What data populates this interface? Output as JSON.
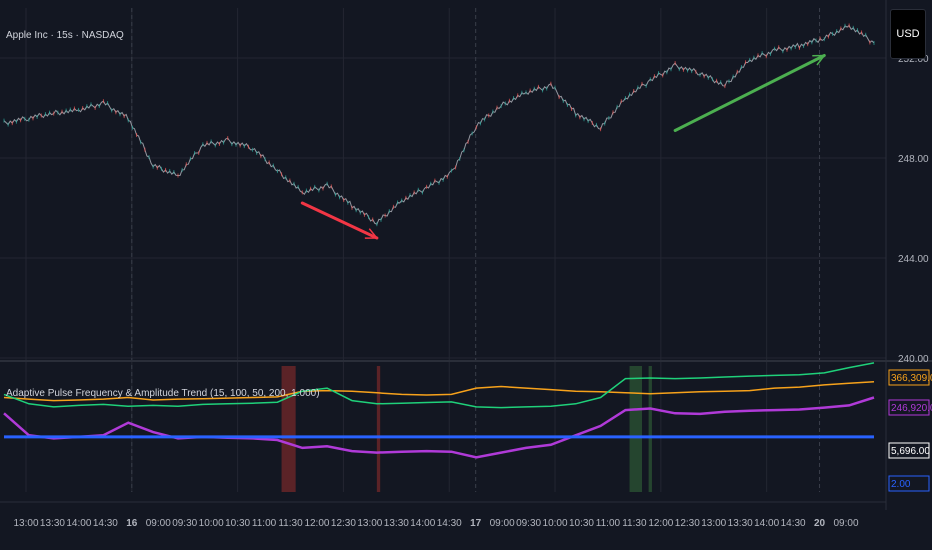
{
  "header": {
    "symbol_title": "Apple Inc · 15s · NASDAQ",
    "currency": "USD"
  },
  "indicator": {
    "title": "Adaptive Pulse Frequency & Amplitude Trend (15, 100, 50, 200, 1.000)"
  },
  "colors": {
    "background": "#131722",
    "grid": "#232632",
    "price_line": "#9598a1",
    "up_candle": "#26a69a",
    "down_candle": "#ef5350",
    "bear_arrow": "#f23645",
    "bull_arrow": "#4caf50",
    "green_line": "#1fd17a",
    "orange_line": "#f7a21b",
    "purple_line": "#b03ad8",
    "blue_line": "#2962ff",
    "red_zone": "#7a2a2a",
    "green_zone": "#2e5a34"
  },
  "price_axis": {
    "ticks": [
      "252.00",
      "248.00",
      "244.00",
      "240.00"
    ]
  },
  "indicator_axis": {
    "tags": [
      {
        "text": "366,309.00",
        "color": "#f7a21b"
      },
      {
        "text": "246,920.00",
        "color": "#b03ad8"
      },
      {
        "text": "5,696.00",
        "color": "#ffffff"
      },
      {
        "text": "2.00",
        "color": "#2962ff"
      }
    ]
  },
  "time_axis": {
    "labels": [
      "13:00",
      "13:30",
      "14:00",
      "14:30",
      "16",
      "09:00",
      "09:30",
      "10:00",
      "10:30",
      "11:00",
      "11:30",
      "12:00",
      "12:30",
      "13:00",
      "13:30",
      "14:00",
      "14:30",
      "17",
      "09:00",
      "09:30",
      "10:00",
      "10:30",
      "11:00",
      "11:30",
      "12:00",
      "12:30",
      "13:00",
      "13:30",
      "14:00",
      "14:30",
      "20",
      "09:00"
    ],
    "bold_labels": [
      "16",
      "17",
      "20"
    ]
  },
  "chart_data": [
    {
      "type": "line",
      "title": "Apple Inc · 15s · NASDAQ",
      "ylim": [
        240,
        254
      ],
      "x": [
        0,
        3,
        6,
        9,
        12,
        15,
        18,
        21,
        24,
        27,
        30,
        33,
        36,
        39,
        42,
        45,
        48,
        51,
        54,
        57,
        60,
        63,
        66,
        69,
        72,
        75,
        78,
        81,
        84,
        87,
        90,
        93,
        96,
        99,
        102,
        105
      ],
      "values": [
        249.4,
        249.6,
        249.8,
        249.9,
        250.2,
        249.6,
        247.7,
        247.3,
        248.5,
        248.7,
        248.4,
        247.5,
        246.6,
        246.9,
        246.1,
        245.4,
        246.3,
        246.8,
        247.4,
        249.3,
        250.1,
        250.6,
        250.9,
        249.8,
        249.2,
        250.4,
        251.1,
        251.7,
        251.4,
        250.9,
        251.9,
        252.3,
        252.5,
        252.8,
        253.3,
        252.6
      ],
      "annotations": [
        {
          "type": "arrow",
          "direction": "down",
          "from": [
            36,
            246.2
          ],
          "to": [
            45,
            244.8
          ]
        },
        {
          "type": "arrow",
          "direction": "up",
          "from": [
            81,
            249.1
          ],
          "to": [
            99,
            252.1
          ]
        }
      ]
    },
    {
      "type": "line",
      "title": "Adaptive Pulse Frequency & Amplitude Trend (15, 100, 50, 200, 1.000)",
      "ylim": [
        0,
        400000
      ],
      "x": [
        0,
        3,
        6,
        9,
        12,
        15,
        18,
        21,
        24,
        27,
        30,
        33,
        36,
        39,
        42,
        45,
        48,
        51,
        54,
        57,
        60,
        63,
        66,
        69,
        72,
        75,
        78,
        81,
        84,
        87,
        90,
        93,
        96,
        99,
        102,
        105
      ],
      "series": [
        {
          "values": [
            300000,
            295000,
            290000,
            292000,
            295000,
            300000,
            292000,
            295000,
            296000,
            298000,
            300000,
            302000,
            320000,
            322000,
            320000,
            315000,
            310000,
            308000,
            310000,
            330000,
            335000,
            330000,
            325000,
            320000,
            318000,
            315000,
            312000,
            315000,
            318000,
            320000,
            322000,
            330000,
            333000,
            340000,
            345000,
            350000
          ]
        },
        {
          "values": [
            310000,
            280000,
            270000,
            275000,
            278000,
            272000,
            275000,
            272000,
            278000,
            280000,
            282000,
            285000,
            320000,
            330000,
            290000,
            280000,
            282000,
            284000,
            286000,
            270000,
            268000,
            270000,
            272000,
            280000,
            300000,
            360000,
            362000,
            360000,
            362000,
            365000,
            368000,
            370000,
            372000,
            378000,
            395000,
            410000
          ]
        },
        {
          "values": [
            250000,
            180000,
            170000,
            175000,
            180000,
            220000,
            190000,
            170000,
            175000,
            172000,
            170000,
            165000,
            140000,
            145000,
            130000,
            125000,
            128000,
            130000,
            128000,
            110000,
            125000,
            140000,
            150000,
            180000,
            210000,
            260000,
            265000,
            250000,
            248000,
            255000,
            258000,
            260000,
            262000,
            268000,
            275000,
            300000
          ]
        },
        {
          "values": [
            175000,
            175000,
            175000,
            175000,
            175000,
            175000,
            175000,
            175000,
            175000,
            175000,
            175000,
            175000,
            175000,
            175000,
            175000,
            175000,
            175000,
            175000,
            175000,
            175000,
            175000,
            175000,
            175000,
            175000,
            175000,
            175000,
            175000,
            175000,
            175000,
            175000,
            175000,
            175000,
            175000,
            175000,
            175000,
            175000
          ]
        }
      ],
      "zones": [
        {
          "type": "red",
          "x0": 33.5,
          "x1": 35.2
        },
        {
          "type": "red",
          "x0": 45,
          "x1": 45.4
        },
        {
          "type": "green",
          "x0": 75.5,
          "x1": 77
        },
        {
          "type": "green",
          "x0": 77.8,
          "x1": 78.2
        }
      ]
    }
  ]
}
